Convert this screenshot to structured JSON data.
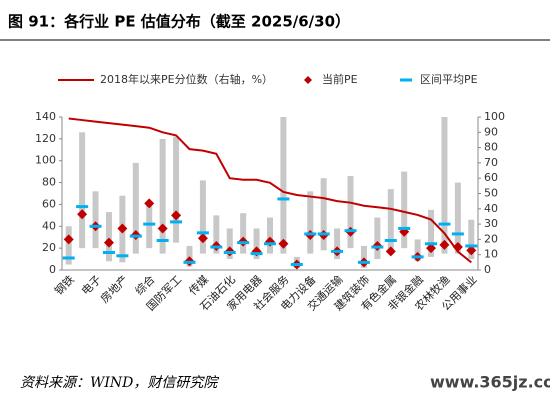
{
  "chart_data": {
    "type": "range-combo",
    "title": "图 91：各行业 PE 估值分布（截至 2025/6/30）",
    "categories": [
      "钢铁",
      null,
      "电子",
      null,
      "房地产",
      null,
      "综合",
      null,
      "国防军工",
      null,
      "传媒",
      null,
      "石油石化",
      null,
      "家用电器",
      null,
      "社会服务",
      null,
      "电力设备",
      null,
      "交通运输",
      null,
      "建筑装饰",
      null,
      "有色金属",
      null,
      "非银金融",
      null,
      "农林牧渔",
      null,
      "公用事业"
    ],
    "range": {
      "color": "#c8c8c8",
      "low": [
        5,
        20,
        20,
        8,
        7,
        15,
        20,
        15,
        25,
        3,
        15,
        15,
        10,
        15,
        10,
        15,
        15,
        2,
        15,
        18,
        10,
        20,
        2,
        10,
        15,
        20,
        8,
        12,
        15,
        15,
        10
      ],
      "high": [
        40,
        126,
        72,
        53,
        68,
        98,
        60,
        120,
        122,
        22,
        82,
        50,
        38,
        52,
        38,
        48,
        140,
        12,
        72,
        84,
        38,
        86,
        22,
        48,
        74,
        90,
        28,
        55,
        140,
        80,
        46
      ]
    },
    "series": [
      {
        "name": "2018年以来PE分位数（右轴，%）",
        "color": "#c00000",
        "axis": "y2",
        "mark": "line",
        "values": [
          99,
          98,
          97,
          96,
          95,
          94,
          93,
          90,
          88,
          79,
          78,
          76,
          60,
          59,
          59,
          57,
          51,
          49,
          48,
          47,
          45,
          44,
          42,
          41,
          40,
          38,
          36,
          33,
          24,
          12,
          5
        ]
      },
      {
        "name": "当前PE",
        "color": "#c00000",
        "mark": "diamond",
        "values": [
          28,
          51,
          40,
          25,
          38,
          32,
          61,
          38,
          50,
          8,
          29,
          22,
          17,
          26,
          17,
          26,
          24,
          5,
          32,
          32,
          17,
          35,
          7,
          22,
          17,
          35,
          12,
          20,
          23,
          21,
          18
        ]
      },
      {
        "name": "区间平均PE",
        "color": "#00b0f0",
        "mark": "dash",
        "values": [
          11,
          58,
          40,
          16,
          13,
          31,
          42,
          27,
          44,
          7,
          34,
          21,
          16,
          25,
          15,
          24,
          65,
          5,
          33,
          33,
          17,
          36,
          7,
          21,
          27,
          38,
          12,
          24,
          42,
          33,
          22
        ]
      }
    ],
    "ylim": [
      0,
      140
    ],
    "yticks": [
      0,
      20,
      40,
      60,
      80,
      100,
      120,
      140
    ],
    "y2lim": [
      0,
      100
    ],
    "y2ticks": [
      0,
      10,
      20,
      30,
      40,
      50,
      60,
      70,
      80,
      90,
      100
    ],
    "source": "资料来源：WIND，财信研究院",
    "watermark": "www.365jz.com"
  }
}
